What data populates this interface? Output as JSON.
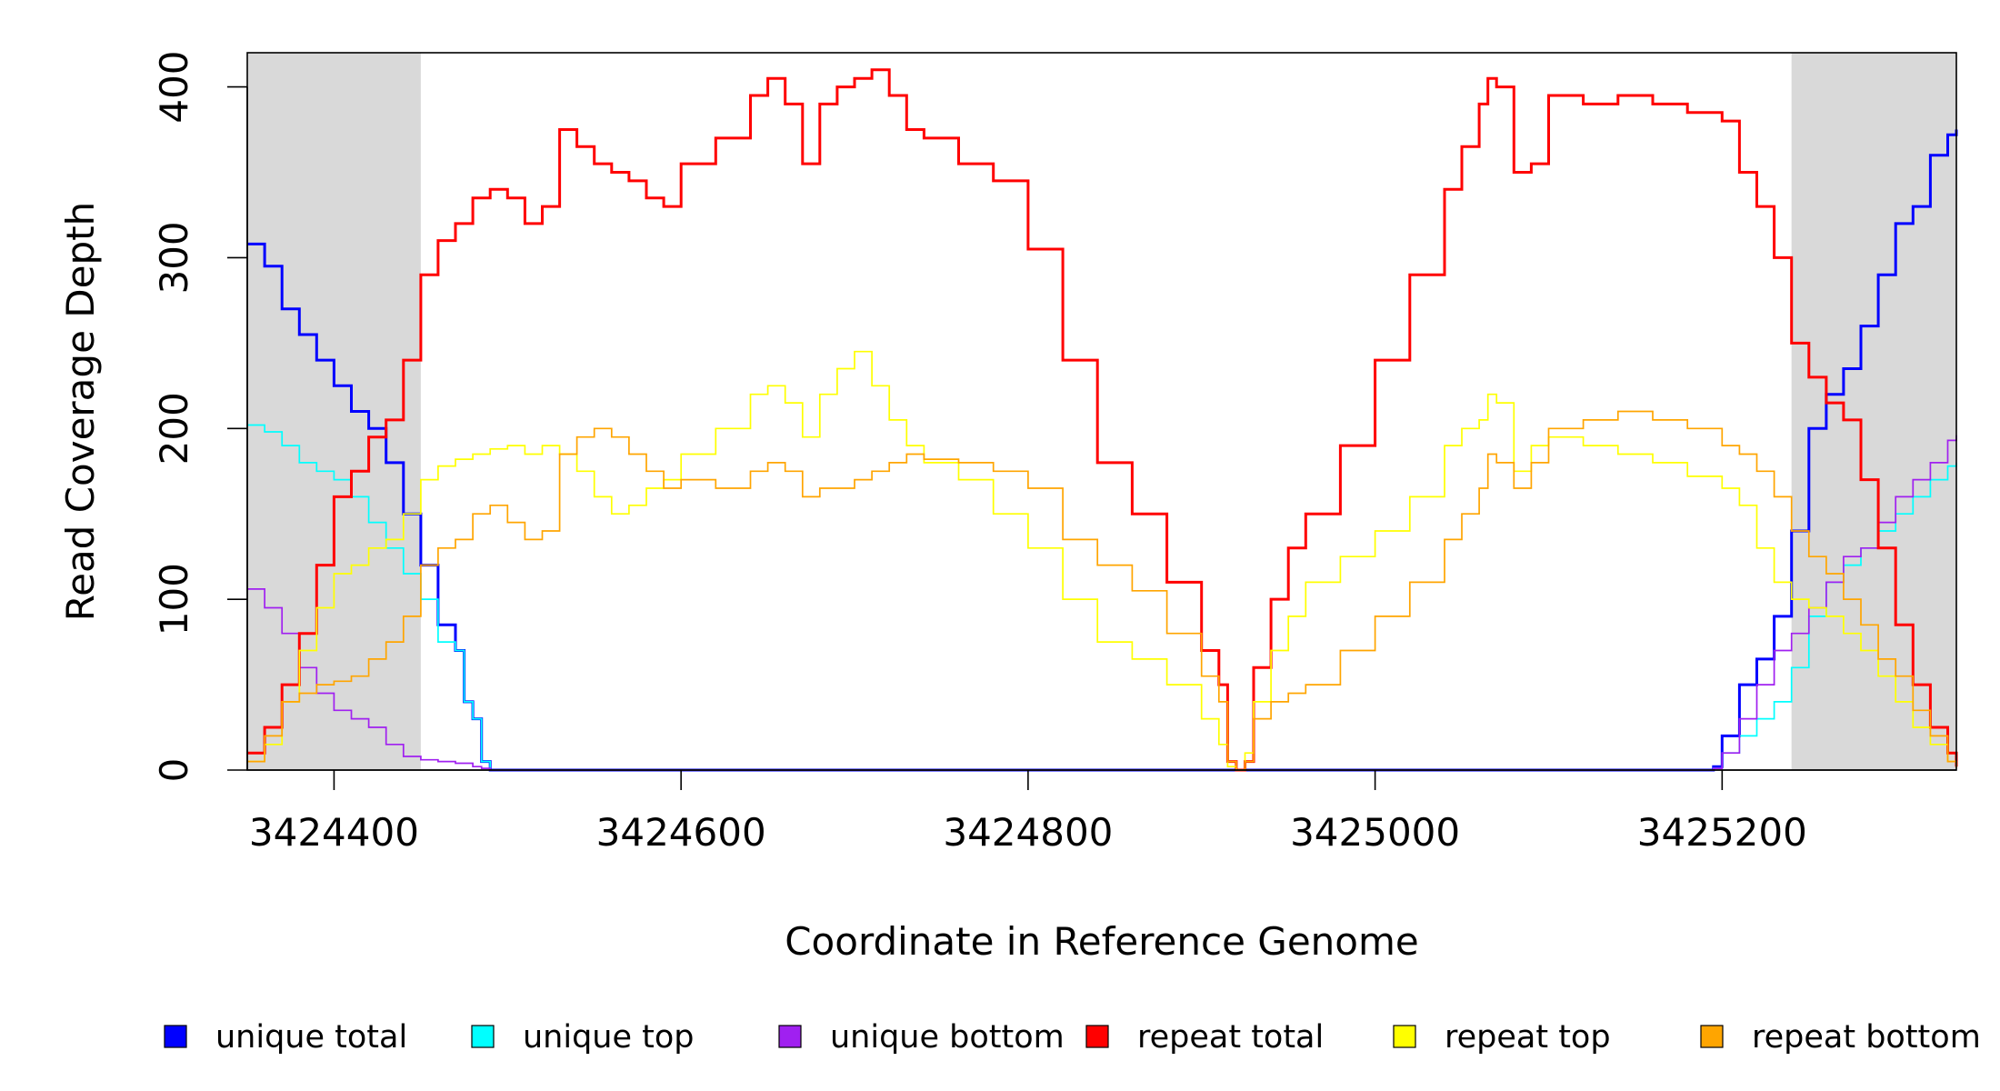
{
  "chart_data": {
    "type": "line",
    "title": "",
    "xlabel": "Coordinate in Reference Genome",
    "ylabel": "Read Coverage Depth",
    "xlim": [
      3424350,
      3425335
    ],
    "ylim": [
      0,
      420
    ],
    "x_ticks": [
      3424400,
      3424600,
      3424800,
      3425000,
      3425200
    ],
    "x_tick_labels": [
      "3424400",
      "3424600",
      "3424800",
      "3425000",
      "3425200"
    ],
    "y_ticks": [
      0,
      100,
      200,
      300,
      400
    ],
    "y_tick_labels": [
      "0",
      "100",
      "200",
      "300",
      "400"
    ],
    "shaded_regions": [
      [
        3424350,
        3424450
      ],
      [
        3425240,
        3425335
      ]
    ],
    "shade_color": "#d9d9d9",
    "legend_position": "bottom",
    "series": [
      {
        "name": "unique total",
        "color": "#0000ff",
        "x": [
          3424350,
          3424360,
          3424370,
          3424380,
          3424390,
          3424400,
          3424410,
          3424420,
          3424430,
          3424440,
          3424450,
          3424460,
          3424470,
          3424475,
          3424480,
          3424485,
          3424490,
          3425190,
          3425195,
          3425200,
          3425210,
          3425220,
          3425230,
          3425240,
          3425250,
          3425260,
          3425270,
          3425280,
          3425290,
          3425300,
          3425310,
          3425320,
          3425330,
          3425335
        ],
        "y": [
          308,
          295,
          270,
          255,
          240,
          225,
          210,
          200,
          180,
          150,
          120,
          85,
          70,
          40,
          30,
          5,
          0,
          0,
          2,
          20,
          50,
          65,
          90,
          140,
          200,
          220,
          235,
          260,
          290,
          320,
          330,
          360,
          372,
          375
        ]
      },
      {
        "name": "unique top",
        "color": "#00ffff",
        "x": [
          3424350,
          3424360,
          3424370,
          3424380,
          3424390,
          3424400,
          3424410,
          3424420,
          3424430,
          3424440,
          3424450,
          3424460,
          3424470,
          3424475,
          3424480,
          3424485,
          3424490,
          3425190,
          3425195,
          3425200,
          3425210,
          3425220,
          3425230,
          3425240,
          3425250,
          3425260,
          3425270,
          3425280,
          3425290,
          3425300,
          3425310,
          3425320,
          3425330,
          3425335
        ],
        "y": [
          202,
          198,
          190,
          180,
          175,
          170,
          160,
          145,
          130,
          115,
          100,
          75,
          70,
          40,
          30,
          5,
          0,
          0,
          1,
          10,
          20,
          30,
          40,
          60,
          90,
          110,
          120,
          130,
          140,
          150,
          160,
          170,
          178,
          180
        ]
      },
      {
        "name": "unique bottom",
        "color": "#a020f0",
        "x": [
          3424350,
          3424360,
          3424370,
          3424380,
          3424390,
          3424400,
          3424410,
          3424420,
          3424430,
          3424440,
          3424450,
          3424460,
          3424470,
          3424480,
          3424485,
          3424490,
          3425190,
          3425195,
          3425200,
          3425210,
          3425220,
          3425230,
          3425240,
          3425250,
          3425260,
          3425270,
          3425280,
          3425290,
          3425300,
          3425310,
          3425320,
          3425330,
          3425335
        ],
        "y": [
          106,
          95,
          80,
          60,
          45,
          35,
          30,
          25,
          15,
          8,
          6,
          5,
          4,
          2,
          1,
          0,
          0,
          1,
          10,
          30,
          50,
          70,
          80,
          95,
          110,
          125,
          130,
          145,
          160,
          170,
          180,
          193,
          196
        ]
      },
      {
        "name": "repeat total",
        "color": "#ff0000",
        "x": [
          3424350,
          3424360,
          3424370,
          3424380,
          3424390,
          3424400,
          3424410,
          3424420,
          3424430,
          3424440,
          3424450,
          3424460,
          3424470,
          3424480,
          3424490,
          3424500,
          3424510,
          3424520,
          3424530,
          3424540,
          3424550,
          3424560,
          3424570,
          3424580,
          3424590,
          3424600,
          3424620,
          3424640,
          3424650,
          3424660,
          3424670,
          3424680,
          3424690,
          3424700,
          3424710,
          3424720,
          3424730,
          3424740,
          3424760,
          3424780,
          3424800,
          3424820,
          3424840,
          3424860,
          3424880,
          3424900,
          3424910,
          3424915,
          3424920,
          3424925,
          3424930,
          3424940,
          3424950,
          3424960,
          3424980,
          3425000,
          3425020,
          3425040,
          3425050,
          3425060,
          3425065,
          3425070,
          3425080,
          3425090,
          3425100,
          3425120,
          3425140,
          3425160,
          3425180,
          3425200,
          3425210,
          3425220,
          3425230,
          3425240,
          3425250,
          3425260,
          3425270,
          3425280,
          3425290,
          3425300,
          3425310,
          3425320,
          3425330,
          3425335
        ],
        "y": [
          10,
          25,
          50,
          80,
          120,
          160,
          175,
          195,
          205,
          240,
          290,
          310,
          320,
          335,
          340,
          335,
          320,
          330,
          375,
          365,
          355,
          350,
          345,
          335,
          330,
          355,
          370,
          395,
          405,
          390,
          355,
          390,
          400,
          405,
          410,
          395,
          375,
          370,
          355,
          345,
          305,
          240,
          180,
          150,
          110,
          70,
          50,
          5,
          0,
          5,
          60,
          100,
          130,
          150,
          190,
          240,
          290,
          340,
          365,
          390,
          405,
          400,
          350,
          355,
          395,
          390,
          395,
          390,
          385,
          380,
          350,
          330,
          300,
          250,
          230,
          215,
          205,
          170,
          130,
          85,
          50,
          25,
          10,
          2
        ]
      },
      {
        "name": "repeat top",
        "color": "#ffff00",
        "x": [
          3424350,
          3424360,
          3424370,
          3424380,
          3424390,
          3424400,
          3424410,
          3424420,
          3424430,
          3424440,
          3424450,
          3424460,
          3424470,
          3424480,
          3424490,
          3424500,
          3424510,
          3424520,
          3424530,
          3424540,
          3424550,
          3424560,
          3424570,
          3424580,
          3424590,
          3424600,
          3424620,
          3424640,
          3424650,
          3424660,
          3424670,
          3424680,
          3424690,
          3424700,
          3424710,
          3424720,
          3424730,
          3424740,
          3424760,
          3424780,
          3424800,
          3424820,
          3424840,
          3424860,
          3424880,
          3424900,
          3424910,
          3424915,
          3424920,
          3424925,
          3424930,
          3424940,
          3424950,
          3424960,
          3424980,
          3425000,
          3425020,
          3425040,
          3425050,
          3425060,
          3425065,
          3425070,
          3425080,
          3425090,
          3425100,
          3425120,
          3425140,
          3425160,
          3425180,
          3425200,
          3425210,
          3425220,
          3425230,
          3425240,
          3425250,
          3425260,
          3425270,
          3425280,
          3425290,
          3425300,
          3425310,
          3425320,
          3425330,
          3425335
        ],
        "y": [
          5,
          15,
          40,
          70,
          95,
          115,
          120,
          130,
          135,
          150,
          170,
          178,
          182,
          185,
          188,
          190,
          185,
          190,
          185,
          175,
          160,
          150,
          155,
          165,
          170,
          185,
          200,
          220,
          225,
          215,
          195,
          220,
          235,
          245,
          225,
          205,
          190,
          180,
          170,
          150,
          130,
          100,
          75,
          65,
          50,
          30,
          15,
          2,
          0,
          10,
          40,
          70,
          90,
          110,
          125,
          140,
          160,
          190,
          200,
          205,
          220,
          215,
          175,
          190,
          195,
          190,
          185,
          180,
          172,
          165,
          155,
          130,
          110,
          100,
          95,
          90,
          80,
          70,
          55,
          40,
          25,
          15,
          5,
          2
        ]
      },
      {
        "name": "repeat bottom",
        "color": "#ffa500",
        "x": [
          3424350,
          3424360,
          3424370,
          3424380,
          3424390,
          3424400,
          3424410,
          3424420,
          3424430,
          3424440,
          3424450,
          3424460,
          3424470,
          3424480,
          3424490,
          3424500,
          3424510,
          3424520,
          3424530,
          3424540,
          3424550,
          3424560,
          3424570,
          3424580,
          3424590,
          3424600,
          3424620,
          3424640,
          3424650,
          3424660,
          3424670,
          3424680,
          3424690,
          3424700,
          3424710,
          3424720,
          3424730,
          3424740,
          3424760,
          3424780,
          3424800,
          3424820,
          3424840,
          3424860,
          3424880,
          3424900,
          3424910,
          3424915,
          3424920,
          3424925,
          3424930,
          3424940,
          3424950,
          3424960,
          3424980,
          3425000,
          3425020,
          3425040,
          3425050,
          3425060,
          3425065,
          3425070,
          3425080,
          3425090,
          3425100,
          3425120,
          3425140,
          3425160,
          3425180,
          3425200,
          3425210,
          3425220,
          3425230,
          3425240,
          3425250,
          3425260,
          3425270,
          3425280,
          3425290,
          3425300,
          3425310,
          3425320,
          3425330,
          3425335
        ],
        "y": [
          5,
          20,
          40,
          45,
          50,
          52,
          55,
          65,
          75,
          90,
          120,
          130,
          135,
          150,
          155,
          145,
          135,
          140,
          185,
          195,
          200,
          195,
          185,
          175,
          165,
          170,
          165,
          175,
          180,
          175,
          160,
          165,
          165,
          170,
          175,
          180,
          185,
          182,
          180,
          175,
          165,
          135,
          120,
          105,
          80,
          55,
          40,
          5,
          0,
          5,
          30,
          40,
          45,
          50,
          70,
          90,
          110,
          135,
          150,
          165,
          185,
          180,
          165,
          180,
          200,
          205,
          210,
          205,
          200,
          190,
          185,
          175,
          160,
          140,
          125,
          115,
          100,
          85,
          65,
          55,
          35,
          20,
          5,
          1
        ]
      }
    ]
  }
}
